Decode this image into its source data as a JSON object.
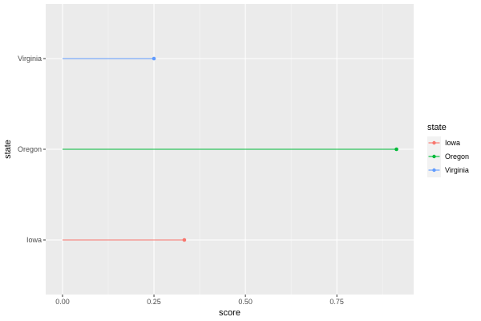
{
  "chart_data": {
    "type": "lollipop",
    "orientation": "horizontal",
    "xlabel": "score",
    "ylabel": "state",
    "x_ticks": [
      "0.00",
      "0.25",
      "0.50",
      "0.75"
    ],
    "x_tick_values": [
      0,
      0.25,
      0.5,
      0.75
    ],
    "xlim": [
      -0.046,
      0.96
    ],
    "categories": [
      "Iowa",
      "Oregon",
      "Virginia"
    ],
    "series": [
      {
        "name": "Iowa",
        "value": 0.333,
        "color": "#F8766D"
      },
      {
        "name": "Oregon",
        "value": 0.913,
        "color": "#00BA38"
      },
      {
        "name": "Virginia",
        "value": 0.25,
        "color": "#619CFF"
      }
    ],
    "legend": {
      "title": "state",
      "position": "right",
      "items": [
        "Iowa",
        "Oregon",
        "Virginia"
      ]
    },
    "grid": true,
    "panel_background": "#EBEBEB",
    "grid_color": "#FFFFFF"
  }
}
